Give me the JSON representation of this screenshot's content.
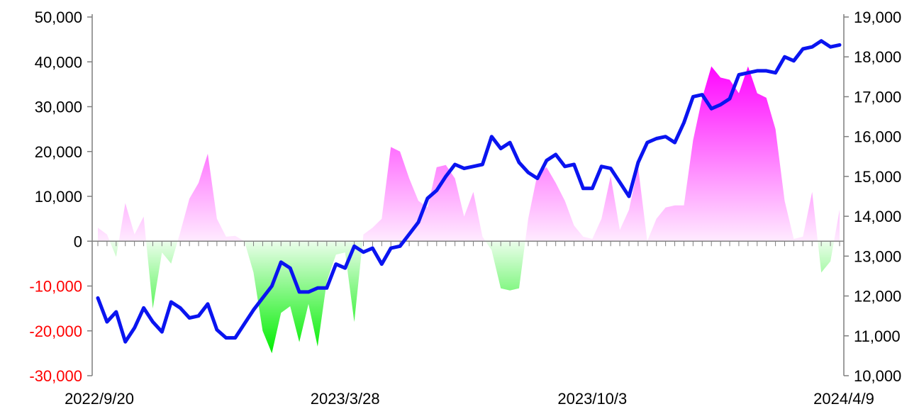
{
  "chart_data": {
    "type": "bar+line",
    "x_labels": [
      "2022/9/20",
      "2023/3/28",
      "2023/10/3",
      "2024/4/9"
    ],
    "x_label_indices": [
      0,
      27,
      54,
      81
    ],
    "left_axis": {
      "ticks": [
        50000,
        40000,
        30000,
        20000,
        10000,
        0,
        -10000,
        -20000,
        -30000
      ],
      "tick_labels": [
        "50,000",
        "40,000",
        "30,000",
        "20,000",
        "10,000",
        "0",
        "-10,000",
        "-20,000",
        "-30,000"
      ],
      "ylim": [
        -30000,
        50000
      ],
      "negative_label_color": "#ff0000"
    },
    "right_axis": {
      "ticks": [
        19000,
        18000,
        17000,
        16000,
        15000,
        14000,
        13000,
        12000,
        11000,
        10000
      ],
      "tick_labels": [
        "19,000",
        "18,000",
        "17,000",
        "16,000",
        "15,000",
        "14,000",
        "13,000",
        "12,000",
        "11,000",
        "10,000"
      ],
      "ylim": [
        10000,
        19000
      ]
    },
    "area_values": [
      3000,
      1500,
      -3500,
      8500,
      1500,
      5500,
      -15000,
      -2500,
      -5000,
      2000,
      9500,
      13000,
      19500,
      5000,
      1000,
      1200,
      0,
      -7000,
      -20000,
      -25000,
      -16000,
      -14500,
      -22500,
      -14000,
      -23500,
      -9000,
      -3000,
      -2500,
      -18000,
      1500,
      3000,
      5000,
      21000,
      20000,
      14000,
      9000,
      7500,
      16500,
      17000,
      14000,
      5500,
      11000,
      1000,
      -2000,
      -10500,
      -11000,
      -10500,
      5000,
      15000,
      16500,
      13000,
      9000,
      3500,
      1000,
      500,
      5000,
      14500,
      2500,
      7000,
      16500,
      0,
      5000,
      7500,
      8000,
      8000,
      22500,
      32000,
      39000,
      36500,
      36000,
      33000,
      39000,
      33000,
      32000,
      25000,
      9000,
      500,
      1000,
      11000,
      -7000,
      -4500,
      7000
    ],
    "line_values": [
      11950,
      11350,
      11600,
      10850,
      11200,
      11700,
      11350,
      11100,
      11850,
      11700,
      11450,
      11500,
      11800,
      11150,
      10950,
      10950,
      11300,
      11650,
      11950,
      12250,
      12850,
      12700,
      12100,
      12100,
      12200,
      12200,
      12800,
      12700,
      13250,
      13100,
      13200,
      12800,
      13200,
      13250,
      13550,
      13850,
      14450,
      14650,
      15000,
      15300,
      15200,
      15250,
      15300,
      16000,
      15700,
      15850,
      15350,
      15100,
      14950,
      15400,
      15550,
      15250,
      15300,
      14700,
      14700,
      15250,
      15200,
      14850,
      14500,
      15350,
      15850,
      15950,
      16000,
      15850,
      16350,
      17000,
      17050,
      16700,
      16800,
      16950,
      17550,
      17600,
      17650,
      17650,
      17600,
      18000,
      17900,
      18200,
      18250,
      18400,
      18250,
      18300
    ],
    "series": [
      {
        "type": "area",
        "axis": "left",
        "positive_color": "#ff00ff",
        "negative_color": "#00ee00"
      },
      {
        "type": "line",
        "axis": "right",
        "color": "#0a14f0"
      }
    ]
  }
}
